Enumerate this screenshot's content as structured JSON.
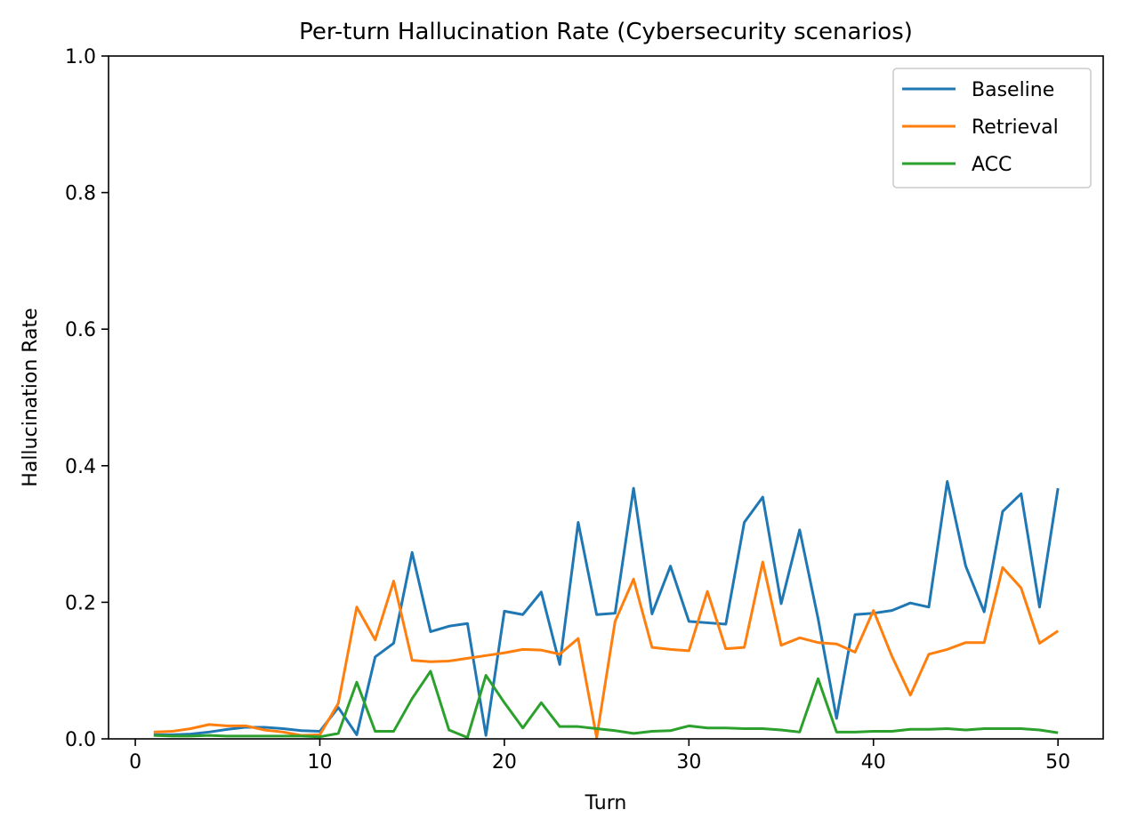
{
  "chart_data": {
    "type": "line",
    "title": "Per-turn Hallucination Rate (Cybersecurity scenarios)",
    "xlabel": "Turn",
    "ylabel": "Hallucination Rate",
    "xlim": [
      -1.45,
      52.45
    ],
    "ylim": [
      0,
      1.0
    ],
    "xticks": [
      0,
      10,
      20,
      30,
      40,
      50
    ],
    "yticks": [
      0.0,
      0.2,
      0.4,
      0.6,
      0.8,
      1.0
    ],
    "xtick_labels": [
      "0",
      "10",
      "20",
      "30",
      "40",
      "50"
    ],
    "ytick_labels": [
      "0.0",
      "0.2",
      "0.4",
      "0.6",
      "0.8",
      "1.0"
    ],
    "grid": false,
    "legend_position": "upper right",
    "x": [
      1,
      2,
      3,
      4,
      5,
      6,
      7,
      8,
      9,
      10,
      11,
      12,
      13,
      14,
      15,
      16,
      17,
      18,
      19,
      20,
      21,
      22,
      23,
      24,
      25,
      26,
      27,
      28,
      29,
      30,
      31,
      32,
      33,
      34,
      35,
      36,
      37,
      38,
      39,
      40,
      41,
      42,
      43,
      44,
      45,
      46,
      47,
      48,
      49,
      50
    ],
    "series": [
      {
        "name": "Baseline",
        "color": "#1f77b4",
        "values": [
          0.006,
          0.006,
          0.007,
          0.01,
          0.014,
          0.017,
          0.017,
          0.015,
          0.012,
          0.011,
          0.046,
          0.006,
          0.12,
          0.14,
          0.273,
          0.157,
          0.165,
          0.169,
          0.005,
          0.187,
          0.182,
          0.215,
          0.109,
          0.317,
          0.182,
          0.184,
          0.367,
          0.183,
          0.253,
          0.172,
          0.17,
          0.168,
          0.317,
          0.354,
          0.198,
          0.306,
          0.176,
          0.03,
          0.182,
          0.184,
          0.188,
          0.199,
          0.193,
          0.377,
          0.253,
          0.186,
          0.333,
          0.359,
          0.193,
          0.367
        ]
      },
      {
        "name": "Retrieval",
        "color": "#ff7f0e",
        "values": [
          0.01,
          0.011,
          0.015,
          0.021,
          0.019,
          0.019,
          0.013,
          0.01,
          0.005,
          0.006,
          0.052,
          0.193,
          0.145,
          0.231,
          0.115,
          0.113,
          0.114,
          0.118,
          0.122,
          0.126,
          0.131,
          0.13,
          0.124,
          0.147,
          0.002,
          0.172,
          0.234,
          0.134,
          0.131,
          0.129,
          0.216,
          0.132,
          0.134,
          0.259,
          0.137,
          0.148,
          0.141,
          0.139,
          0.127,
          0.188,
          0.121,
          0.064,
          0.124,
          0.131,
          0.141,
          0.141,
          0.251,
          0.221,
          0.14,
          0.158
        ]
      },
      {
        "name": "ACC",
        "color": "#2ca02c",
        "values": [
          0.005,
          0.004,
          0.004,
          0.005,
          0.004,
          0.004,
          0.004,
          0.004,
          0.004,
          0.003,
          0.008,
          0.083,
          0.011,
          0.011,
          0.059,
          0.099,
          0.013,
          0.002,
          0.093,
          0.053,
          0.016,
          0.053,
          0.018,
          0.018,
          0.015,
          0.012,
          0.008,
          0.011,
          0.012,
          0.019,
          0.016,
          0.016,
          0.015,
          0.015,
          0.013,
          0.01,
          0.088,
          0.01,
          0.01,
          0.011,
          0.011,
          0.014,
          0.014,
          0.015,
          0.013,
          0.015,
          0.015,
          0.015,
          0.013,
          0.009
        ]
      }
    ]
  }
}
